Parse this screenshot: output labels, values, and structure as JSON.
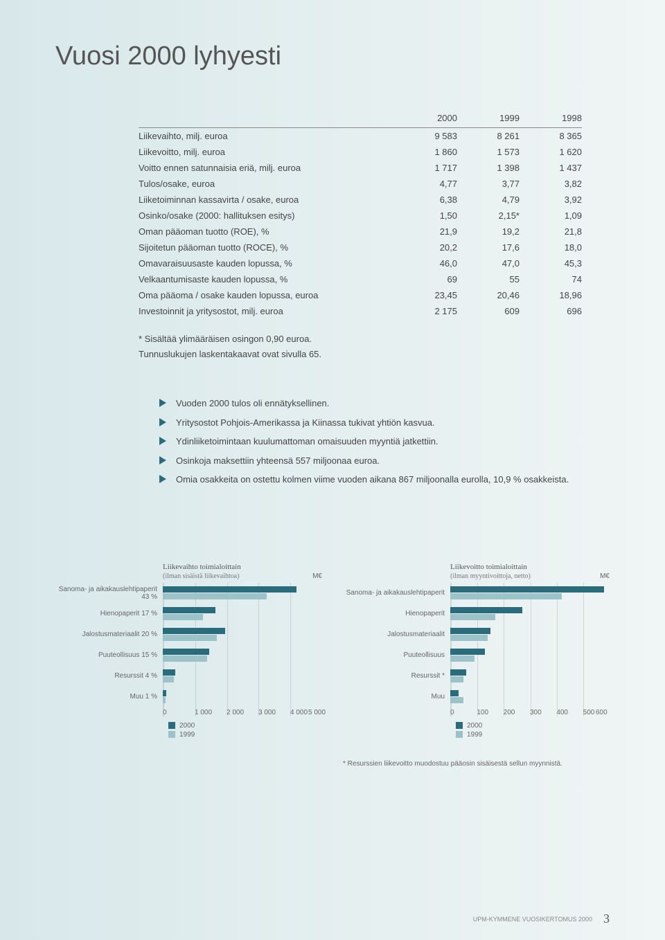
{
  "title": "Vuosi 2000 lyhyesti",
  "table": {
    "headers": [
      "2000",
      "1999",
      "1998"
    ],
    "rows": [
      {
        "label": "Liikevaihto, milj. euroa",
        "vals": [
          "9 583",
          "8 261",
          "8 365"
        ]
      },
      {
        "label": "Liikevoitto, milj. euroa",
        "vals": [
          "1 860",
          "1 573",
          "1 620"
        ]
      },
      {
        "label": "Voitto ennen satunnaisia eriä, milj. euroa",
        "vals": [
          "1 717",
          "1 398",
          "1 437"
        ]
      },
      {
        "label": "Tulos/osake, euroa",
        "vals": [
          "4,77",
          "3,77",
          "3,82"
        ]
      },
      {
        "label": "Liiketoiminnan kassavirta / osake, euroa",
        "vals": [
          "6,38",
          "4,79",
          "3,92"
        ]
      },
      {
        "label": "Osinko/osake (2000: hallituksen esitys)",
        "vals": [
          "1,50",
          "2,15*",
          "1,09"
        ]
      },
      {
        "label": "Oman pääoman tuotto (ROE), %",
        "vals": [
          "21,9",
          "19,2",
          "21,8"
        ]
      },
      {
        "label": "Sijoitetun pääoman tuotto (ROCE), %",
        "vals": [
          "20,2",
          "17,6",
          "18,0"
        ]
      },
      {
        "label": "Omavaraisuusaste kauden lopussa, %",
        "vals": [
          "46,0",
          "47,0",
          "45,3"
        ]
      },
      {
        "label": "Velkaantumisaste kauden lopussa, %",
        "vals": [
          "69",
          "55",
          "74"
        ]
      },
      {
        "label": "Oma pääoma / osake kauden lopussa, euroa",
        "vals": [
          "23,45",
          "20,46",
          "18,96"
        ]
      },
      {
        "label": "Investoinnit ja yritysostot, milj. euroa",
        "vals": [
          "2 175",
          "609",
          "696"
        ]
      }
    ]
  },
  "notes": {
    "n1": "*  Sisältää ylimääräisen osingon 0,90 euroa.",
    "n2": "Tunnuslukujen laskentakaavat ovat sivulla 65."
  },
  "bullets": [
    "Vuoden 2000 tulos oli ennätyksellinen.",
    "Yritysostot Pohjois-Amerikassa ja Kiinassa tukivat yhtiön kasvua.",
    "Ydinliiketoimintaan kuulumattoman omaisuuden myyntiä jatkettiin.",
    "Osinkoja maksettiin yhteensä 557 miljoonaa euroa.",
    "Omia osakkeita on ostettu kolmen viime vuoden aikana 867 miljoonalla eurolla, 10,9 % osakkeista."
  ],
  "chart1": {
    "title": "Liikevaihto toimialoittain",
    "subtitle": "(ilman sisäistä liikevaihtoa)",
    "unit": "M€",
    "categories": [
      {
        "label": "Sanoma- ja aikakauslehtipaperit 43 %",
        "v2000": 4200,
        "v1999": 3250
      },
      {
        "label": "Hienopaperit 17 %",
        "v2000": 1650,
        "v1999": 1250
      },
      {
        "label": "Jalostusmateriaalit 20 %",
        "v2000": 1950,
        "v1999": 1700
      },
      {
        "label": "Puuteollisuus 15 %",
        "v2000": 1450,
        "v1999": 1400
      },
      {
        "label": "Resurssit 4 %",
        "v2000": 400,
        "v1999": 350
      },
      {
        "label": "Muu 1 %",
        "v2000": 100,
        "v1999": 90
      }
    ],
    "xmax": 5000,
    "xticks": [
      "0",
      "1 000",
      "2 000",
      "3 000",
      "4 000",
      "5 000"
    ],
    "legend": [
      {
        "label": "2000",
        "color": "#2a6b7c"
      },
      {
        "label": "1999",
        "color": "#9cc3c9"
      }
    ]
  },
  "chart2": {
    "title": "Liikevoitto toimialoittain",
    "subtitle": "(ilman myyntivoittoja, netto)",
    "unit": "M€",
    "categories": [
      {
        "label": "Sanoma- ja aikakauslehtipaperit",
        "v2000": 580,
        "v1999": 420
      },
      {
        "label": "Hienopaperit",
        "v2000": 270,
        "v1999": 170
      },
      {
        "label": "Jalostusmateriaalit",
        "v2000": 150,
        "v1999": 140
      },
      {
        "label": "Puuteollisuus",
        "v2000": 130,
        "v1999": 90
      },
      {
        "label": "Resurssit *",
        "v2000": 60,
        "v1999": 50
      },
      {
        "label": "Muu",
        "v2000": 30,
        "v1999": 50
      }
    ],
    "xmax": 600,
    "xticks": [
      "0",
      "100",
      "200",
      "300",
      "400",
      "500",
      "600"
    ],
    "legend": [
      {
        "label": "2000",
        "color": "#2a6b7c"
      },
      {
        "label": "1999",
        "color": "#9cc3c9"
      }
    ],
    "footnote": "* Resurssien liikevoitto muodostuu pääosin sisäisestä sellun myynnistä."
  },
  "footer": {
    "text": "UPM-KYMMENE VUOSIKERTOMUS 2000",
    "page": "3"
  }
}
